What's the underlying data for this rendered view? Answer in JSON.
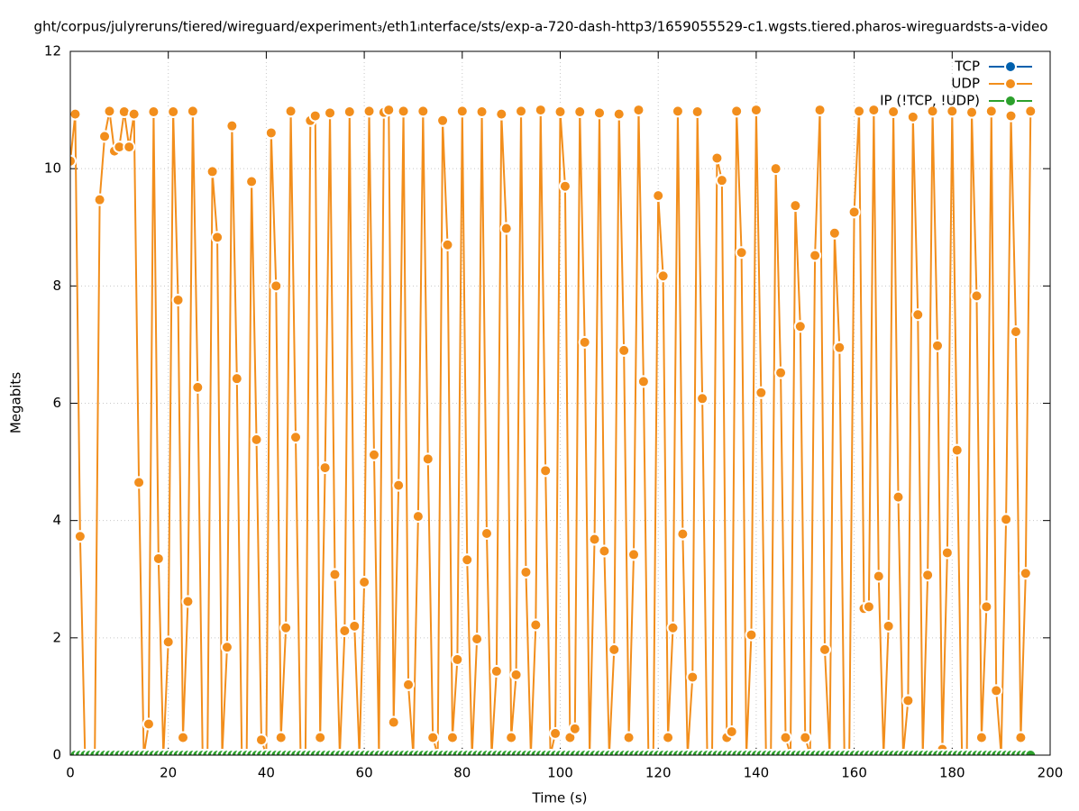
{
  "chart_data": {
    "type": "line",
    "title": "ght/corpus/julyreruns/tiered/wireguard/experiment₃/eth1ᵢnterface/sts/exp-a-720-dash-http3/1659055529-c1.wgsts.tiered.pharos-wireguardsts-a-video",
    "x_label": "Time (s)",
    "y_label": "Megabits",
    "x": [
      0,
      1,
      2,
      3,
      4,
      5,
      6,
      7,
      8,
      9,
      10,
      11,
      12,
      13,
      14,
      15,
      16,
      17,
      18,
      19,
      20,
      21,
      22,
      23,
      24,
      25,
      26,
      27,
      28,
      29,
      30,
      31,
      32,
      33,
      34,
      35,
      36,
      37,
      38,
      39,
      40,
      41,
      42,
      43,
      44,
      45,
      46,
      47,
      48,
      49,
      50,
      51,
      52,
      53,
      54,
      55,
      56,
      57,
      58,
      59,
      60,
      61,
      62,
      63,
      64,
      65,
      66,
      67,
      68,
      69,
      70,
      71,
      72,
      73,
      74,
      75,
      76,
      77,
      78,
      79,
      80,
      81,
      82,
      83,
      84,
      85,
      86,
      87,
      88,
      89,
      90,
      91,
      92,
      93,
      94,
      95,
      96,
      97,
      98,
      99,
      100,
      101,
      102,
      103,
      104,
      105,
      106,
      107,
      108,
      109,
      110,
      111,
      112,
      113,
      114,
      115,
      116,
      117,
      118,
      119,
      120,
      121,
      122,
      123,
      124,
      125,
      126,
      127,
      128,
      129,
      130,
      131,
      132,
      133,
      134,
      135,
      136,
      137,
      138,
      139,
      140,
      141,
      142,
      143,
      144,
      145,
      146,
      147,
      148,
      149,
      150,
      151,
      152,
      153,
      154,
      155,
      156,
      157,
      158,
      159,
      160,
      161,
      162,
      163,
      164,
      165,
      166,
      167,
      168,
      169,
      170,
      171,
      172,
      173,
      174,
      175,
      176,
      177,
      178,
      179,
      180,
      181,
      182,
      183,
      184,
      185,
      186,
      187,
      188,
      189,
      190,
      191,
      192,
      193,
      194,
      195,
      196
    ],
    "series": [
      {
        "name": "TCP",
        "color": "#0060ad",
        "values": [
          0,
          0,
          0,
          0,
          0,
          0,
          0,
          0,
          0,
          0,
          0,
          0,
          0,
          0,
          0,
          0,
          0,
          0,
          0,
          0,
          0,
          0,
          0,
          0,
          0,
          0,
          0,
          0,
          0,
          0,
          0,
          0,
          0,
          0,
          0,
          0,
          0,
          0,
          0,
          0,
          0,
          0,
          0,
          0,
          0,
          0,
          0,
          0,
          0,
          0,
          0,
          0,
          0,
          0,
          0,
          0,
          0,
          0,
          0,
          0,
          0,
          0,
          0,
          0,
          0,
          0,
          0,
          0,
          0,
          0,
          0,
          0,
          0,
          0,
          0,
          0,
          0,
          0,
          0,
          0,
          0,
          0,
          0,
          0,
          0,
          0,
          0,
          0,
          0,
          0,
          0,
          0,
          0,
          0,
          0,
          0,
          0,
          0,
          0,
          0,
          0,
          0,
          0,
          0,
          0,
          0,
          0,
          0,
          0,
          0,
          0,
          0,
          0,
          0,
          0,
          0,
          0,
          0,
          0,
          0,
          0,
          0,
          0,
          0,
          0,
          0,
          0,
          0,
          0,
          0,
          0,
          0,
          0,
          0,
          0,
          0,
          0,
          0,
          0,
          0,
          0,
          0,
          0,
          0,
          0,
          0,
          0,
          0,
          0,
          0,
          0,
          0,
          0,
          0,
          0,
          0,
          0,
          0,
          0,
          0,
          0,
          0,
          0,
          0,
          0,
          0,
          0,
          0,
          0,
          0,
          0,
          0,
          0,
          0,
          0,
          0,
          0,
          0,
          0,
          0,
          0,
          0,
          0,
          0,
          0,
          0,
          0,
          0,
          0,
          0,
          0,
          0,
          0,
          0,
          0,
          0,
          0
        ]
      },
      {
        "name": "UDP",
        "color": "#f28e1c",
        "values": [
          10.13,
          10.93,
          3.73,
          0,
          0,
          0,
          9.47,
          10.55,
          10.98,
          10.3,
          10.37,
          10.97,
          10.37,
          10.93,
          4.65,
          0,
          0.53,
          10.97,
          3.35,
          0,
          1.93,
          10.97,
          7.76,
          0.3,
          2.62,
          10.98,
          6.27,
          0,
          0,
          9.95,
          8.83,
          0,
          1.84,
          10.73,
          6.42,
          0,
          0,
          9.78,
          5.38,
          0.26,
          0,
          10.61,
          8.0,
          0.3,
          2.17,
          10.98,
          5.42,
          0,
          0,
          10.82,
          10.9,
          0.3,
          4.9,
          10.95,
          3.08,
          0,
          2.12,
          10.97,
          2.2,
          0,
          2.95,
          10.98,
          5.12,
          0,
          10.96,
          11.0,
          0.56,
          4.6,
          10.98,
          1.2,
          0,
          4.07,
          10.98,
          5.05,
          0.3,
          0,
          10.82,
          8.7,
          0.3,
          1.63,
          10.98,
          3.33,
          0,
          1.98,
          10.97,
          3.78,
          0,
          1.43,
          10.93,
          8.98,
          0.3,
          1.37,
          10.98,
          3.12,
          0,
          2.22,
          11.0,
          4.85,
          0,
          0.37,
          10.97,
          9.7,
          0.3,
          0.45,
          10.97,
          7.04,
          0,
          3.68,
          10.95,
          3.48,
          0,
          1.8,
          10.93,
          6.9,
          0.3,
          3.42,
          11.0,
          6.37,
          0,
          0,
          9.54,
          8.17,
          0.3,
          2.17,
          10.98,
          3.77,
          0,
          1.33,
          10.97,
          6.08,
          0,
          0,
          10.18,
          9.8,
          0.3,
          0.4,
          10.98,
          8.57,
          0,
          2.05,
          11.0,
          6.18,
          0,
          0,
          10.0,
          6.52,
          0.3,
          0,
          9.37,
          7.31,
          0.3,
          0,
          8.52,
          11.0,
          1.8,
          0,
          8.9,
          6.95,
          0,
          0,
          9.26,
          10.98,
          2.5,
          2.53,
          11.0,
          3.05,
          0,
          2.2,
          10.97,
          4.4,
          0,
          0.93,
          10.88,
          7.51,
          0,
          3.07,
          10.98,
          6.98,
          0.1,
          3.45,
          10.98,
          5.2,
          0,
          0,
          10.96,
          7.83,
          0.3,
          2.53,
          10.98,
          1.1,
          0,
          4.02,
          10.9,
          7.22,
          0.3,
          3.1,
          10.98
        ]
      },
      {
        "name": "IP (!TCP, !UDP)",
        "color": "#2ca02c",
        "values": [
          0,
          0,
          0,
          0,
          0,
          0,
          0,
          0,
          0,
          0,
          0,
          0,
          0,
          0,
          0,
          0,
          0,
          0,
          0,
          0,
          0,
          0,
          0,
          0,
          0,
          0,
          0,
          0,
          0,
          0,
          0,
          0,
          0,
          0,
          0,
          0,
          0,
          0,
          0,
          0,
          0,
          0,
          0,
          0,
          0,
          0,
          0,
          0,
          0,
          0,
          0,
          0,
          0,
          0,
          0,
          0,
          0,
          0,
          0,
          0,
          0,
          0,
          0,
          0,
          0,
          0,
          0,
          0,
          0,
          0,
          0,
          0,
          0,
          0,
          0,
          0,
          0,
          0,
          0,
          0,
          0,
          0,
          0,
          0,
          0,
          0,
          0,
          0,
          0,
          0,
          0,
          0,
          0,
          0,
          0,
          0,
          0,
          0,
          0,
          0,
          0,
          0,
          0,
          0,
          0,
          0,
          0,
          0,
          0,
          0,
          0,
          0,
          0,
          0,
          0,
          0,
          0,
          0,
          0,
          0,
          0,
          0,
          0,
          0,
          0,
          0,
          0,
          0,
          0,
          0,
          0,
          0,
          0,
          0,
          0,
          0,
          0,
          0,
          0,
          0,
          0,
          0,
          0,
          0,
          0,
          0,
          0,
          0,
          0,
          0,
          0,
          0,
          0,
          0,
          0,
          0,
          0,
          0,
          0,
          0,
          0,
          0,
          0,
          0,
          0,
          0,
          0,
          0,
          0,
          0,
          0,
          0,
          0,
          0,
          0,
          0,
          0,
          0,
          0,
          0,
          0,
          0,
          0,
          0,
          0,
          0,
          0,
          0,
          0,
          0,
          0,
          0,
          0,
          0,
          0,
          0,
          0
        ]
      }
    ],
    "xlim": [
      0,
      200
    ],
    "xticks": [
      0,
      20,
      40,
      60,
      80,
      100,
      120,
      140,
      160,
      180,
      200
    ],
    "ylim": [
      0,
      12
    ],
    "yticks": [
      0,
      2,
      4,
      6,
      8,
      10,
      12
    ],
    "grid": true,
    "legend": "top-right"
  }
}
